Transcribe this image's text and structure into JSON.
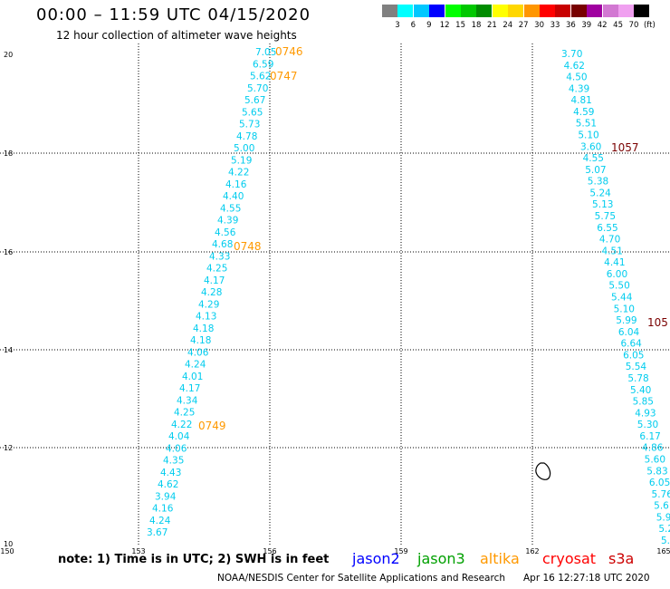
{
  "title": "00:00  –  11:59 UTC 04/15/2020",
  "subtitle": "12 hour collection of altimeter wave heights",
  "color_scale": {
    "colors": [
      "#808080",
      "#00ffff",
      "#00c8ff",
      "#0000ff",
      "#00ff00",
      "#00c800",
      "#008c00",
      "#ffff00",
      "#ffd700",
      "#ff9600",
      "#ff0000",
      "#c80000",
      "#780000",
      "#a000a0",
      "#d278d2",
      "#f0a0f0",
      "#000000"
    ],
    "labels": [
      "3",
      "6",
      "9",
      "12",
      "15",
      "18",
      "21",
      "24",
      "27",
      "30",
      "33",
      "36",
      "39",
      "42",
      "45",
      "70",
      "(ft)"
    ]
  },
  "axes": {
    "lat_labels": [
      "20",
      "18",
      "16",
      "14",
      "12",
      "10"
    ],
    "lon_labels": [
      "150",
      "153",
      "156",
      "159",
      "162",
      "165"
    ]
  },
  "tracks": [
    {
      "name": "track-a",
      "color": "#00ccee",
      "values": [
        "7.05",
        "6.59",
        "5.62",
        "5.70",
        "5.67",
        "5.65",
        "5.73",
        "4.78",
        "5.00",
        "5.19",
        "4.22",
        "4.16",
        "4.40",
        "4.55",
        "4.39",
        "4.56",
        "4.68",
        "4.33",
        "4.25",
        "4.17",
        "4.28",
        "4.29",
        "4.13",
        "4.18",
        "4.18",
        "4.06",
        "4.24",
        "4.01",
        "4.17",
        "4.34",
        "4.25",
        "4.22",
        "4.04",
        "4.06",
        "4.35",
        "4.43",
        "4.62",
        "3.94",
        "4.16",
        "4.24",
        "3.67"
      ]
    },
    {
      "name": "track-b",
      "color": "#00ccee",
      "values": [
        "3.70",
        "4.62",
        "4.50",
        "4.39",
        "4.81",
        "4.59",
        "5.51",
        "5.10",
        "3.60",
        "4.55",
        "5.07",
        "5.38",
        "5.24",
        "5.13",
        "5.75",
        "6.55",
        "4.70",
        "4.51",
        "4.41",
        "6.00",
        "5.50",
        "5.44",
        "5.10",
        "5.99",
        "6.04",
        "6.64",
        "6.05",
        "5.54",
        "5.78",
        "5.40",
        "5.85",
        "4.93",
        "5.30",
        "6.17",
        "4.86",
        "5.60",
        "5.83",
        "6.05",
        "5.76",
        "5.6",
        "5.9",
        "5.2",
        "5."
      ]
    }
  ],
  "time_labels": [
    {
      "text": "0746",
      "color": "#ff9900"
    },
    {
      "text": "0747",
      "color": "#ff9900"
    },
    {
      "text": "0748",
      "color": "#ff9900"
    },
    {
      "text": "0749",
      "color": "#ff9900"
    },
    {
      "text": "1057",
      "color": "#7a0000"
    },
    {
      "text": "105",
      "color": "#7a0000"
    }
  ],
  "footer": {
    "note": "note:  1) Time is in UTC;  2) SWH is in feet",
    "satellites": [
      {
        "name": "jason2",
        "color": "#0000ff"
      },
      {
        "name": "jason3",
        "color": "#00a000"
      },
      {
        "name": "altika",
        "color": "#ff9900"
      },
      {
        "name": "cryosat",
        "color": "#ff0000"
      },
      {
        "name": "s3a",
        "color": "#cc0000"
      }
    ],
    "credit": "NOAA/NESDIS Center for Satellite Applications and Research",
    "timestamp": "Apr 16 12:27:18 UTC 2020"
  }
}
